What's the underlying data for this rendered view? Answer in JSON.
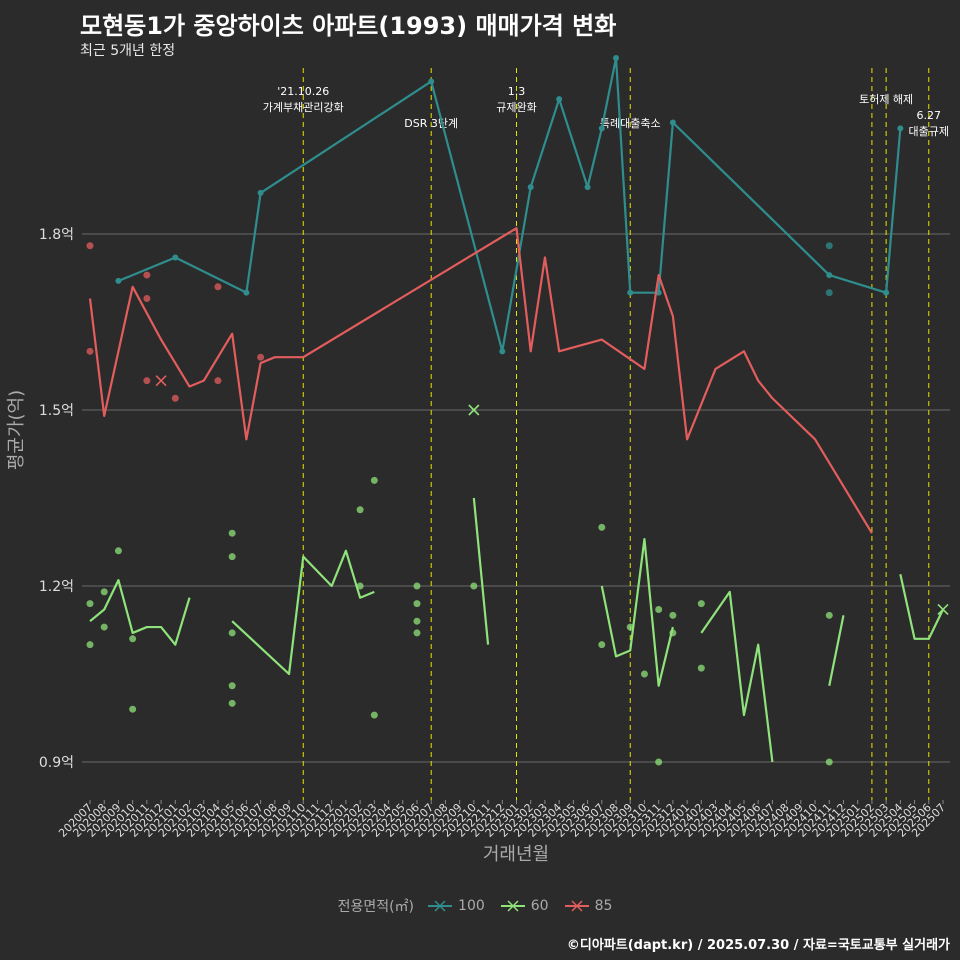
{
  "title": "모현동1가 중앙하이츠 아파트(1993) 매매가격 변화",
  "subtitle": "최근 5개년 한정",
  "caption": "©디아파트(dapt.kr) / 2025.07.30 / 자료=국토교통부 실거래가",
  "chart_data": {
    "type": "line",
    "xlabel": "거래년월",
    "ylabel": "평균가(억)",
    "ylim": [
      0.85,
      2.15
    ],
    "yticks": [
      0.9,
      1.2,
      1.5,
      1.8
    ],
    "ytick_labels": [
      "0.9억",
      "1.2억",
      "1.5억",
      "1.8억"
    ],
    "grid": true,
    "categories": [
      "202007",
      "202008",
      "202009",
      "202010",
      "202011",
      "202012",
      "202101",
      "202102",
      "202103",
      "202104",
      "202105",
      "202106",
      "202107",
      "202108",
      "202109",
      "202110",
      "202111",
      "202112",
      "202201",
      "202202",
      "202203",
      "202204",
      "202205",
      "202206",
      "202207",
      "202208",
      "202209",
      "202210",
      "202211",
      "202212",
      "202301",
      "202302",
      "202303",
      "202304",
      "202305",
      "202306",
      "202307",
      "202308",
      "202309",
      "202310",
      "202311",
      "202312",
      "202401",
      "202402",
      "202403",
      "202404",
      "202405",
      "202406",
      "202407",
      "202408",
      "202409",
      "202410",
      "202411",
      "202412",
      "202501",
      "202502",
      "202503",
      "202504",
      "202505",
      "202506",
      "202507"
    ],
    "legend_title": "전용면적(㎡)",
    "legend": [
      "100",
      "60",
      "85"
    ],
    "legend_position": "bottom",
    "colors": {
      "100": "#2f8d8d",
      "60": "#8fe37a",
      "85": "#e35d5d"
    },
    "events": [
      {
        "x": "202110",
        "label": "'21.10.26\n가계부채관리강화",
        "level": 0
      },
      {
        "x": "202207",
        "label": "DSR 3단계",
        "level": 2
      },
      {
        "x": "202301",
        "label": "1.3\n규제완화",
        "level": 0
      },
      {
        "x": "202309",
        "label": "특례대출축소",
        "level": 2
      },
      {
        "x": "202502",
        "label": "",
        "level": 0
      },
      {
        "x": "202503",
        "label": "토허제 해제",
        "level": 1
      },
      {
        "x": "202506",
        "label": "6.27\n대출규제",
        "level": 1
      }
    ],
    "series": [
      {
        "name": "100",
        "line": [
          [
            "202009",
            1.72
          ],
          [
            "202101",
            1.76
          ],
          [
            "202106",
            1.7
          ],
          [
            "202107",
            1.87
          ],
          [
            "202207",
            2.06
          ],
          [
            "202212",
            1.6
          ],
          [
            "202302",
            1.88
          ],
          [
            "202304",
            2.03
          ],
          [
            "202306",
            1.88
          ],
          [
            "202307",
            1.98
          ],
          [
            "202308",
            2.1
          ],
          [
            "202309",
            1.7
          ],
          [
            "202311",
            1.7
          ],
          [
            "202312",
            1.99
          ],
          [
            "202411",
            1.73
          ],
          [
            "202503",
            1.7
          ],
          [
            "202504",
            1.98
          ]
        ],
        "points": [
          [
            "202411",
            1.78
          ],
          [
            "202411",
            1.7
          ]
        ],
        "crosses": []
      },
      {
        "name": "60",
        "line": [
          [
            "202007",
            1.14
          ],
          [
            "202008",
            1.16
          ],
          [
            "202009",
            1.21
          ],
          [
            "202010",
            1.12
          ],
          [
            "202011",
            1.13
          ],
          [
            "202012",
            1.13
          ],
          [
            "202101",
            1.1
          ],
          [
            "202102",
            1.18
          ],
          null,
          [
            "202105",
            1.14
          ],
          [
            "202109",
            1.05
          ],
          [
            "202110",
            1.25
          ],
          [
            "202112",
            1.2
          ],
          [
            "202201",
            1.26
          ],
          [
            "202202",
            1.18
          ],
          [
            "202203",
            1.19
          ],
          null,
          [
            "202210",
            1.35
          ],
          [
            "202211",
            1.1
          ],
          null,
          [
            "202307",
            1.2
          ],
          [
            "202308",
            1.08
          ],
          [
            "202309",
            1.09
          ],
          [
            "202310",
            1.28
          ],
          [
            "202311",
            1.03
          ],
          [
            "202312",
            1.13
          ],
          null,
          [
            "202402",
            1.12
          ],
          [
            "202404",
            1.19
          ],
          [
            "202405",
            0.98
          ],
          [
            "202406",
            1.1
          ],
          [
            "202407",
            0.9
          ],
          null,
          [
            "202411",
            1.03
          ],
          [
            "202412",
            1.15
          ],
          null,
          [
            "202504",
            1.22
          ],
          [
            "202505",
            1.11
          ],
          [
            "202506",
            1.11
          ],
          [
            "202507",
            1.16
          ]
        ],
        "points": [
          [
            "202007",
            1.17
          ],
          [
            "202007",
            1.1
          ],
          [
            "202008",
            1.19
          ],
          [
            "202008",
            1.13
          ],
          [
            "202009",
            1.26
          ],
          [
            "202010",
            0.99
          ],
          [
            "202010",
            1.11
          ],
          [
            "202105",
            1.29
          ],
          [
            "202105",
            1.25
          ],
          [
            "202105",
            1.12
          ],
          [
            "202105",
            1.03
          ],
          [
            "202105",
            1.0
          ],
          [
            "202202",
            1.33
          ],
          [
            "202202",
            1.2
          ],
          [
            "202203",
            1.38
          ],
          [
            "202203",
            0.98
          ],
          [
            "202206",
            1.2
          ],
          [
            "202206",
            1.17
          ],
          [
            "202206",
            1.14
          ],
          [
            "202206",
            1.12
          ],
          [
            "202210",
            1.2
          ],
          [
            "202307",
            1.3
          ],
          [
            "202307",
            1.1
          ],
          [
            "202309",
            1.13
          ],
          [
            "202310",
            1.05
          ],
          [
            "202311",
            1.16
          ],
          [
            "202311",
            0.9
          ],
          [
            "202312",
            1.15
          ],
          [
            "202312",
            1.12
          ],
          [
            "202402",
            1.17
          ],
          [
            "202402",
            1.06
          ],
          [
            "202411",
            1.15
          ],
          [
            "202411",
            0.9
          ]
        ],
        "crosses": [
          [
            "202210",
            1.5
          ],
          [
            "202507",
            1.16
          ]
        ]
      },
      {
        "name": "85",
        "line": [
          [
            "202007",
            1.69
          ],
          [
            "202008",
            1.49
          ],
          [
            "202010",
            1.71
          ],
          [
            "202012",
            1.62
          ],
          [
            "202102",
            1.54
          ],
          [
            "202103",
            1.55
          ],
          [
            "202105",
            1.63
          ],
          [
            "202106",
            1.45
          ],
          [
            "202107",
            1.58
          ],
          [
            "202108",
            1.59
          ],
          [
            "202110",
            1.59
          ],
          [
            "202301",
            1.81
          ],
          [
            "202302",
            1.6
          ],
          [
            "202303",
            1.76
          ],
          [
            "202304",
            1.6
          ],
          [
            "202307",
            1.62
          ],
          [
            "202310",
            1.57
          ],
          [
            "202311",
            1.73
          ],
          [
            "202312",
            1.66
          ],
          [
            "202401",
            1.45
          ],
          [
            "202403",
            1.57
          ],
          [
            "202405",
            1.6
          ],
          [
            "202406",
            1.55
          ],
          [
            "202407",
            1.52
          ],
          [
            "202410",
            1.45
          ],
          [
            "202502",
            1.29
          ]
        ],
        "points": [
          [
            "202007",
            1.78
          ],
          [
            "202007",
            1.6
          ],
          [
            "202011",
            1.73
          ],
          [
            "202011",
            1.69
          ],
          [
            "202011",
            1.55
          ],
          [
            "202101",
            1.52
          ],
          [
            "202104",
            1.71
          ],
          [
            "202104",
            1.55
          ],
          [
            "202107",
            1.59
          ]
        ],
        "crosses": [
          [
            "202012",
            1.55
          ]
        ]
      }
    ]
  }
}
